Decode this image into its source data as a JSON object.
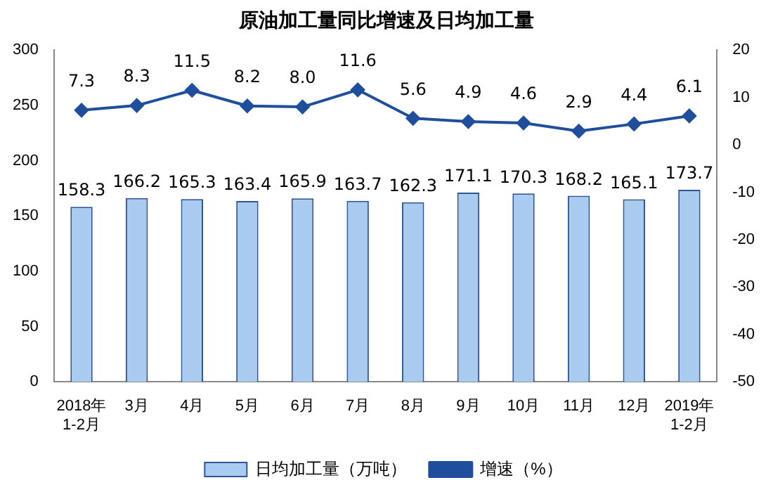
{
  "chart_data": {
    "type": "bar",
    "title": "原油加工量同比增速及日均加工量",
    "categories": [
      "2018年\n1-2月",
      "3月",
      "4月",
      "5月",
      "6月",
      "7月",
      "8月",
      "9月",
      "10月",
      "11月",
      "12月",
      "2019年\n1-2月"
    ],
    "series": [
      {
        "name": "日均加工量（万吨）",
        "color": "#a9cbf0",
        "values": [
          158.3,
          166.2,
          165.3,
          163.4,
          165.9,
          163.7,
          162.3,
          171.1,
          170.3,
          168.2,
          165.1,
          173.7
        ],
        "value_labels": [
          "158.3",
          "166.2",
          "165.3",
          "163.4",
          "165.9",
          "163.7",
          "162.3",
          "171.1",
          "170.3",
          "168.2",
          "165.1",
          "173.7"
        ]
      },
      {
        "name": "增速（%）",
        "type": "line",
        "axis": "y2",
        "color": "#1f4e9c",
        "marker": "diamond",
        "values": [
          7.3,
          8.3,
          11.5,
          8.2,
          8.0,
          11.6,
          5.6,
          4.9,
          4.6,
          2.9,
          4.4,
          6.1
        ],
        "value_labels": [
          "7.3",
          "8.3",
          "11.5",
          "8.2",
          "8.0",
          "11.6",
          "5.6",
          "4.9",
          "4.6",
          "2.9",
          "4.4",
          "6.1"
        ]
      }
    ],
    "ylim": [
      0,
      300
    ],
    "yticks": [
      0,
      50,
      100,
      150,
      200,
      250,
      300
    ],
    "y2lim": [
      -50,
      20
    ],
    "y2ticks": [
      -50,
      -40,
      -30,
      -20,
      -10,
      0,
      10,
      20
    ],
    "grid": false,
    "legend": "bottom"
  }
}
